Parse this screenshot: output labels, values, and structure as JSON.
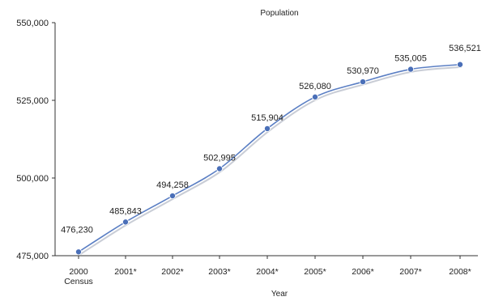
{
  "chart_data": {
    "type": "line",
    "title": "Population",
    "xlabel": "Year",
    "ylabel": "",
    "categories": [
      "2000\nCensus",
      "2001*",
      "2002*",
      "2003*",
      "2004*",
      "2005*",
      "2006*",
      "2007*",
      "2008*"
    ],
    "series": [
      {
        "values": [
          476230,
          485843,
          494258,
          502995,
          515904,
          526080,
          530970,
          535005,
          536521
        ],
        "data_labels": [
          "476,230",
          "485,843",
          "494,258",
          "502,995",
          "515,904",
          "526,080",
          "530,970",
          "535,005",
          "536,521"
        ]
      }
    ],
    "yticks": [
      475000,
      500000,
      525000,
      550000
    ],
    "ytick_labels": [
      "475,000",
      "500,000",
      "525,000",
      "550,000"
    ],
    "ylim": [
      475000,
      550000
    ],
    "grid": false,
    "line_color": "#5b7fc4",
    "marker_color": "#4a6fb8"
  }
}
